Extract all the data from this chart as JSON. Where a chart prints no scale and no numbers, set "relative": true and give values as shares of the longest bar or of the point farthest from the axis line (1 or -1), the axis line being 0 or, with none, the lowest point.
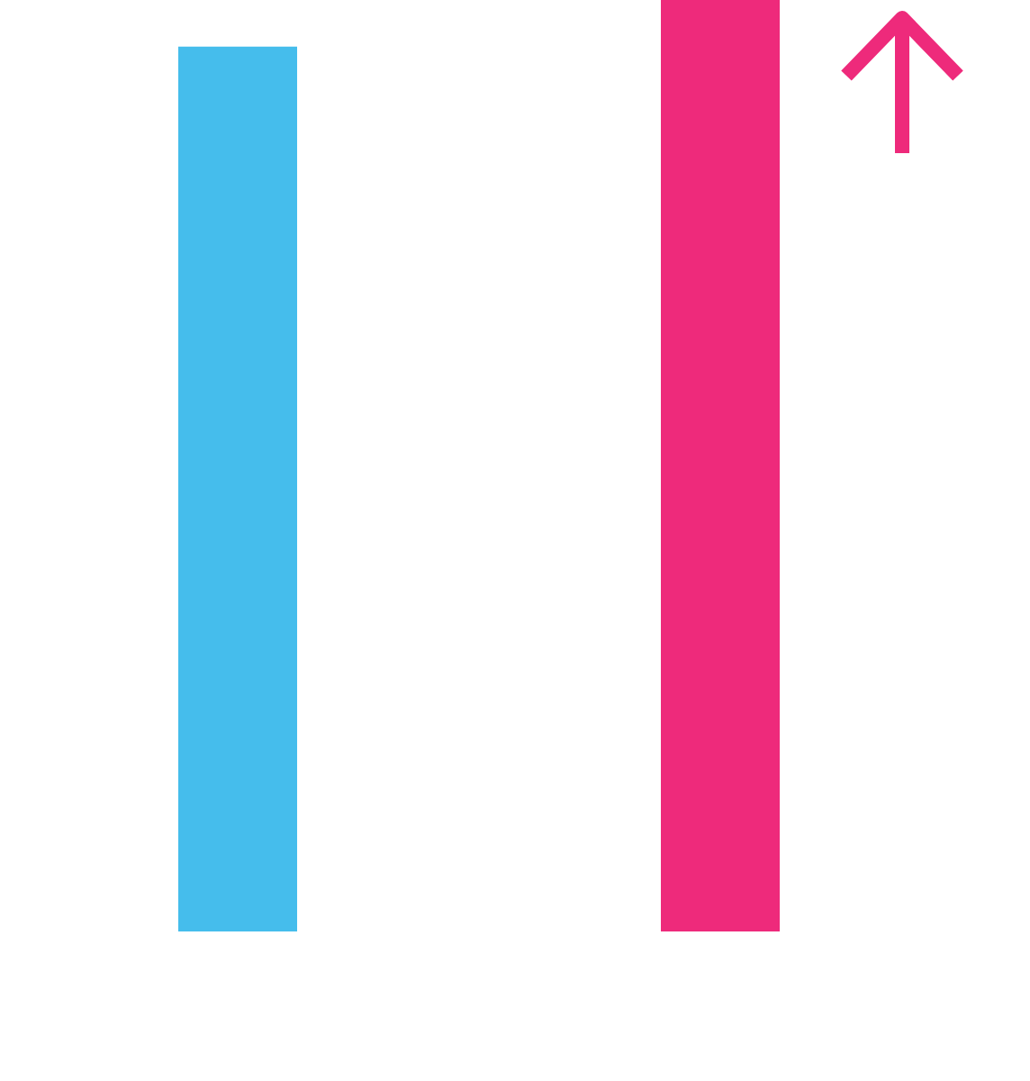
{
  "chart_data": {
    "type": "bar",
    "relative": true,
    "categories": [
      null,
      null
    ],
    "values": [
      0.95,
      1
    ],
    "colors": [
      "#45bdec",
      "#ee2a7b"
    ]
  }
}
